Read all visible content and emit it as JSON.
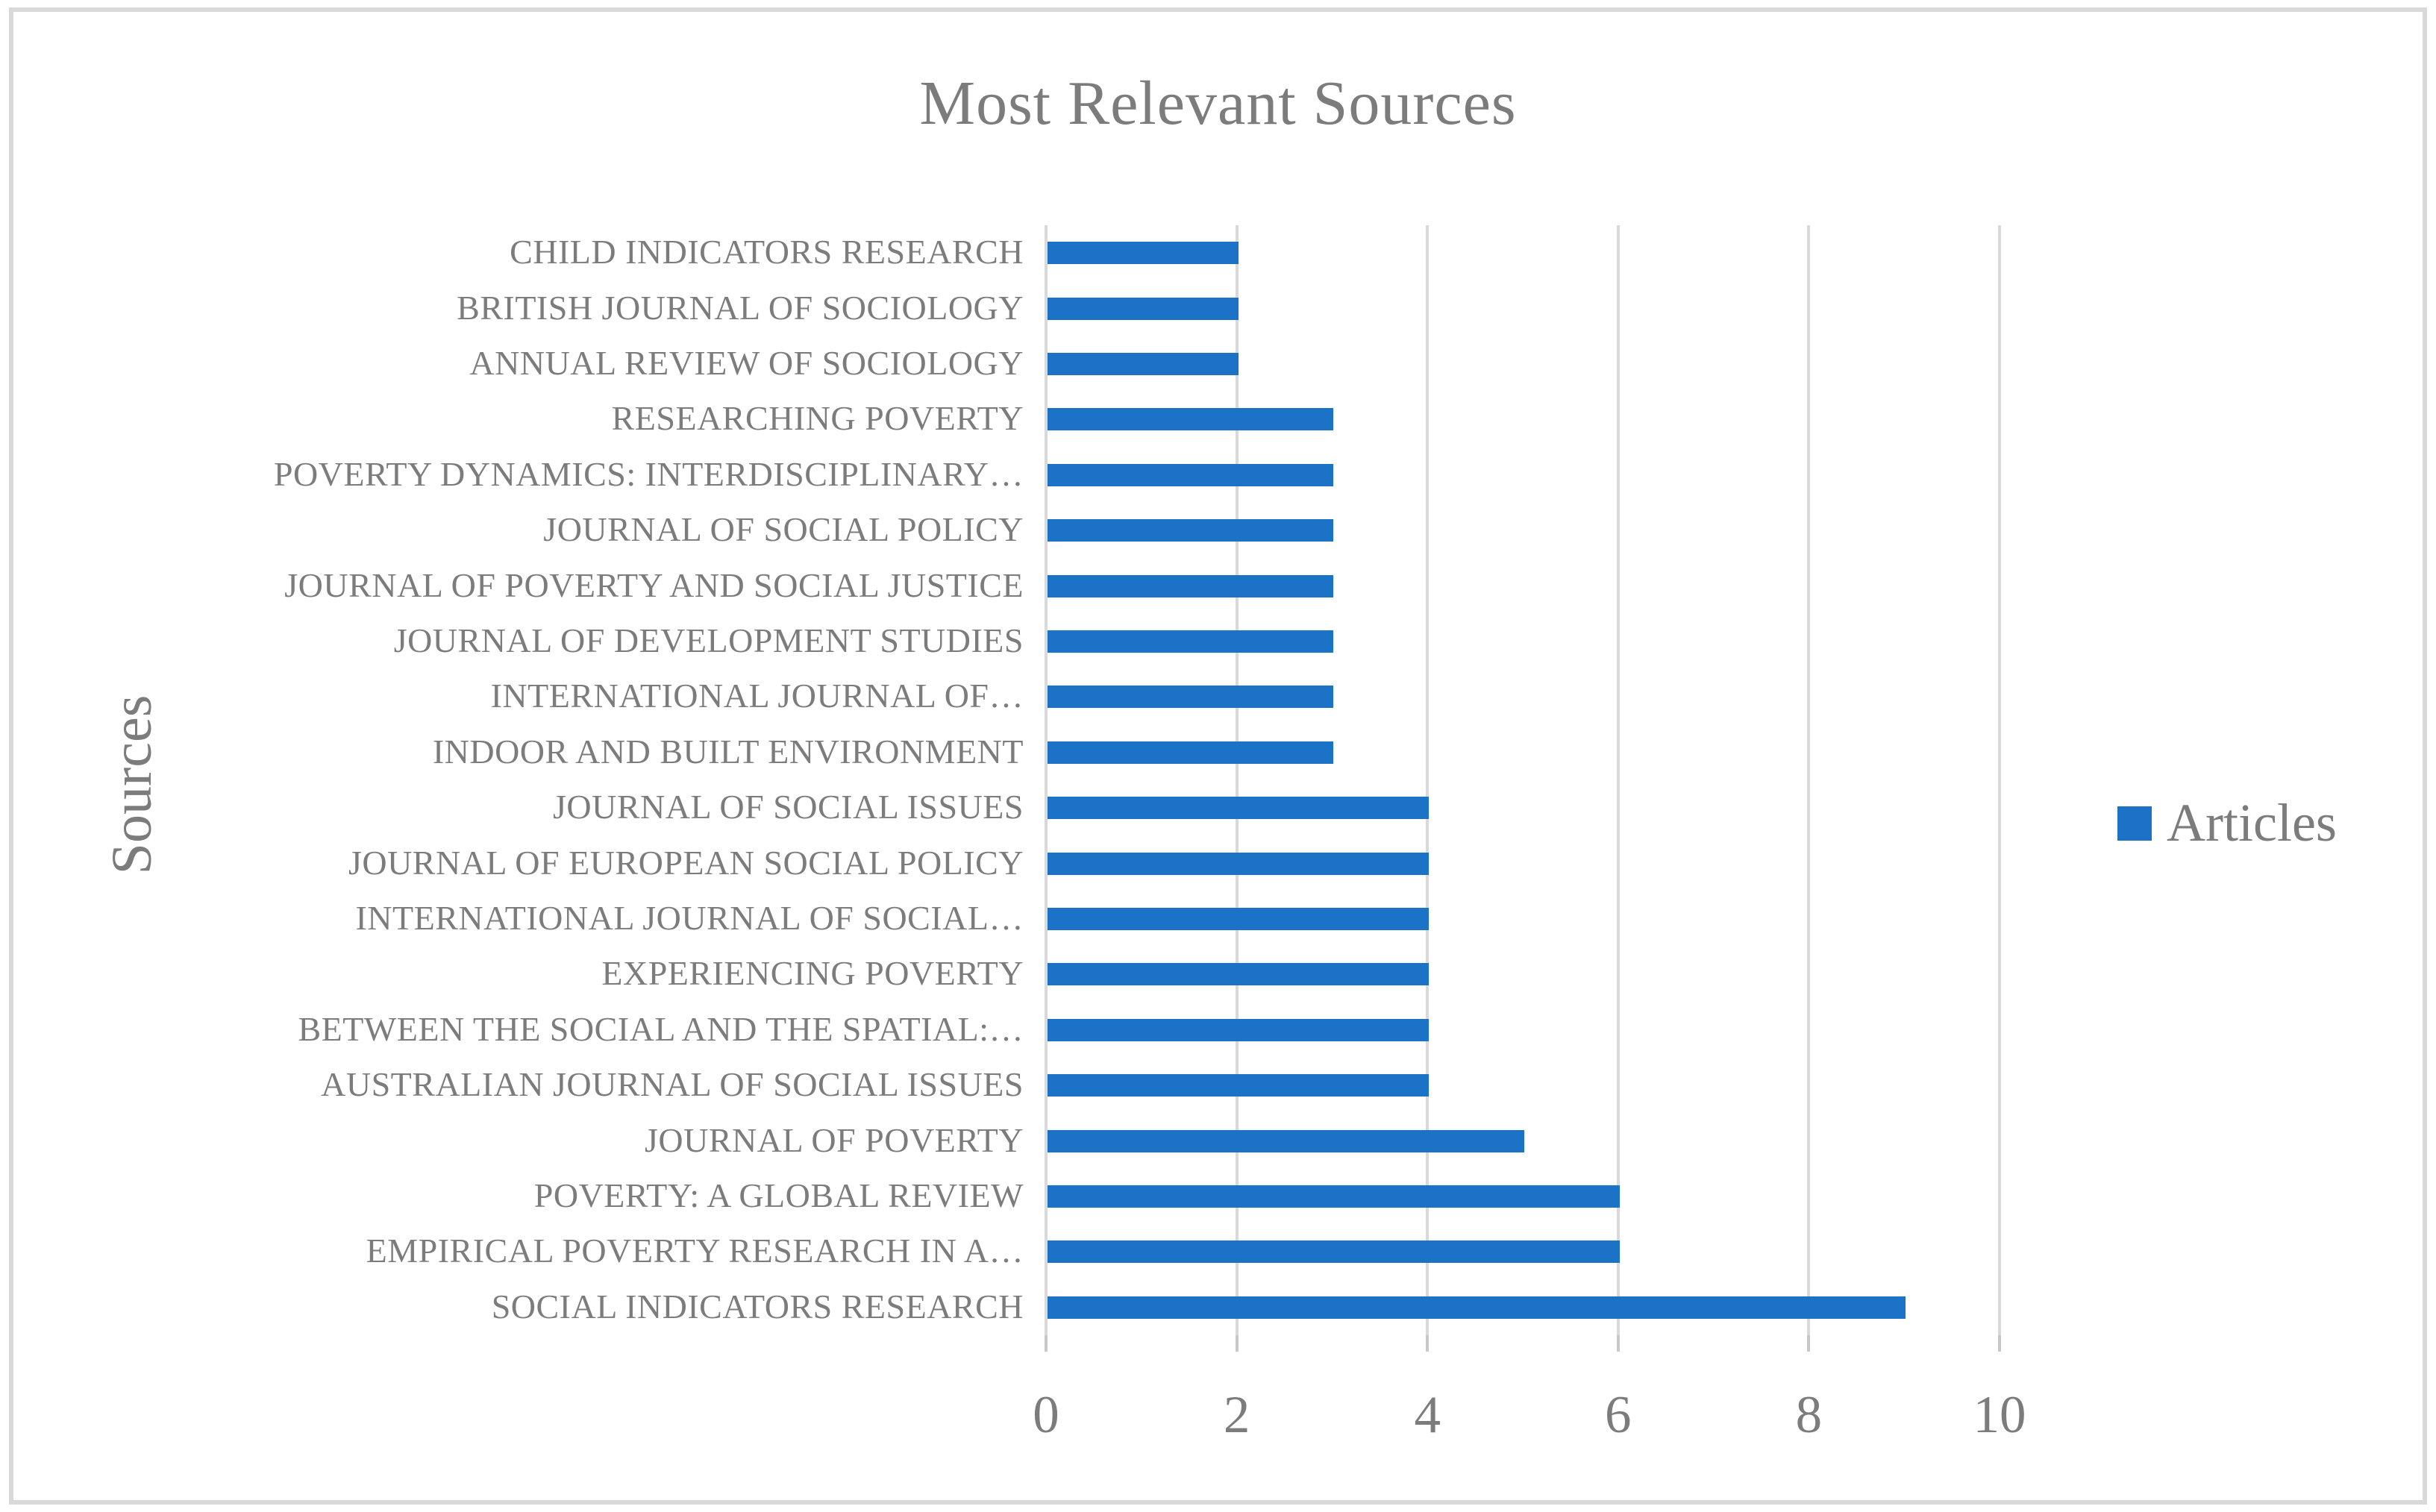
{
  "chart_data": {
    "type": "bar",
    "orientation": "horizontal",
    "title": "Most Relevant Sources",
    "xlabel": "",
    "ylabel": "Sources",
    "legend_position": "center-right",
    "legend": [
      {
        "label": "Articles",
        "color": "#1b72c7"
      }
    ],
    "categories": [
      "CHILD INDICATORS RESEARCH",
      "BRITISH JOURNAL OF SOCIOLOGY",
      "ANNUAL REVIEW OF SOCIOLOGY",
      "RESEARCHING POVERTY",
      "POVERTY DYNAMICS: INTERDISCIPLINARY…",
      "JOURNAL OF SOCIAL POLICY",
      "JOURNAL OF POVERTY AND SOCIAL JUSTICE",
      "JOURNAL OF DEVELOPMENT STUDIES",
      "INTERNATIONAL JOURNAL OF…",
      "INDOOR AND BUILT ENVIRONMENT",
      "JOURNAL OF SOCIAL ISSUES",
      "JOURNAL OF EUROPEAN SOCIAL POLICY",
      "INTERNATIONAL JOURNAL OF SOCIAL…",
      "EXPERIENCING POVERTY",
      "BETWEEN THE SOCIAL AND THE SPATIAL:…",
      "AUSTRALIAN JOURNAL OF SOCIAL ISSUES",
      "JOURNAL OF POVERTY",
      "POVERTY: A GLOBAL REVIEW",
      "EMPIRICAL POVERTY RESEARCH IN A…",
      "SOCIAL INDICATORS RESEARCH"
    ],
    "values": [
      2,
      2,
      2,
      3,
      3,
      3,
      3,
      3,
      3,
      3,
      4,
      4,
      4,
      4,
      4,
      4,
      5,
      6,
      6,
      9
    ],
    "xlim": [
      0,
      10
    ],
    "x_ticks": [
      0,
      2,
      4,
      6,
      8,
      10
    ],
    "grid": "vertical-major",
    "colors": {
      "bar": "#1b72c7",
      "gridline": "#d9d9d9",
      "text": "#7c7c7c",
      "frame": "#d9d9d9"
    }
  }
}
